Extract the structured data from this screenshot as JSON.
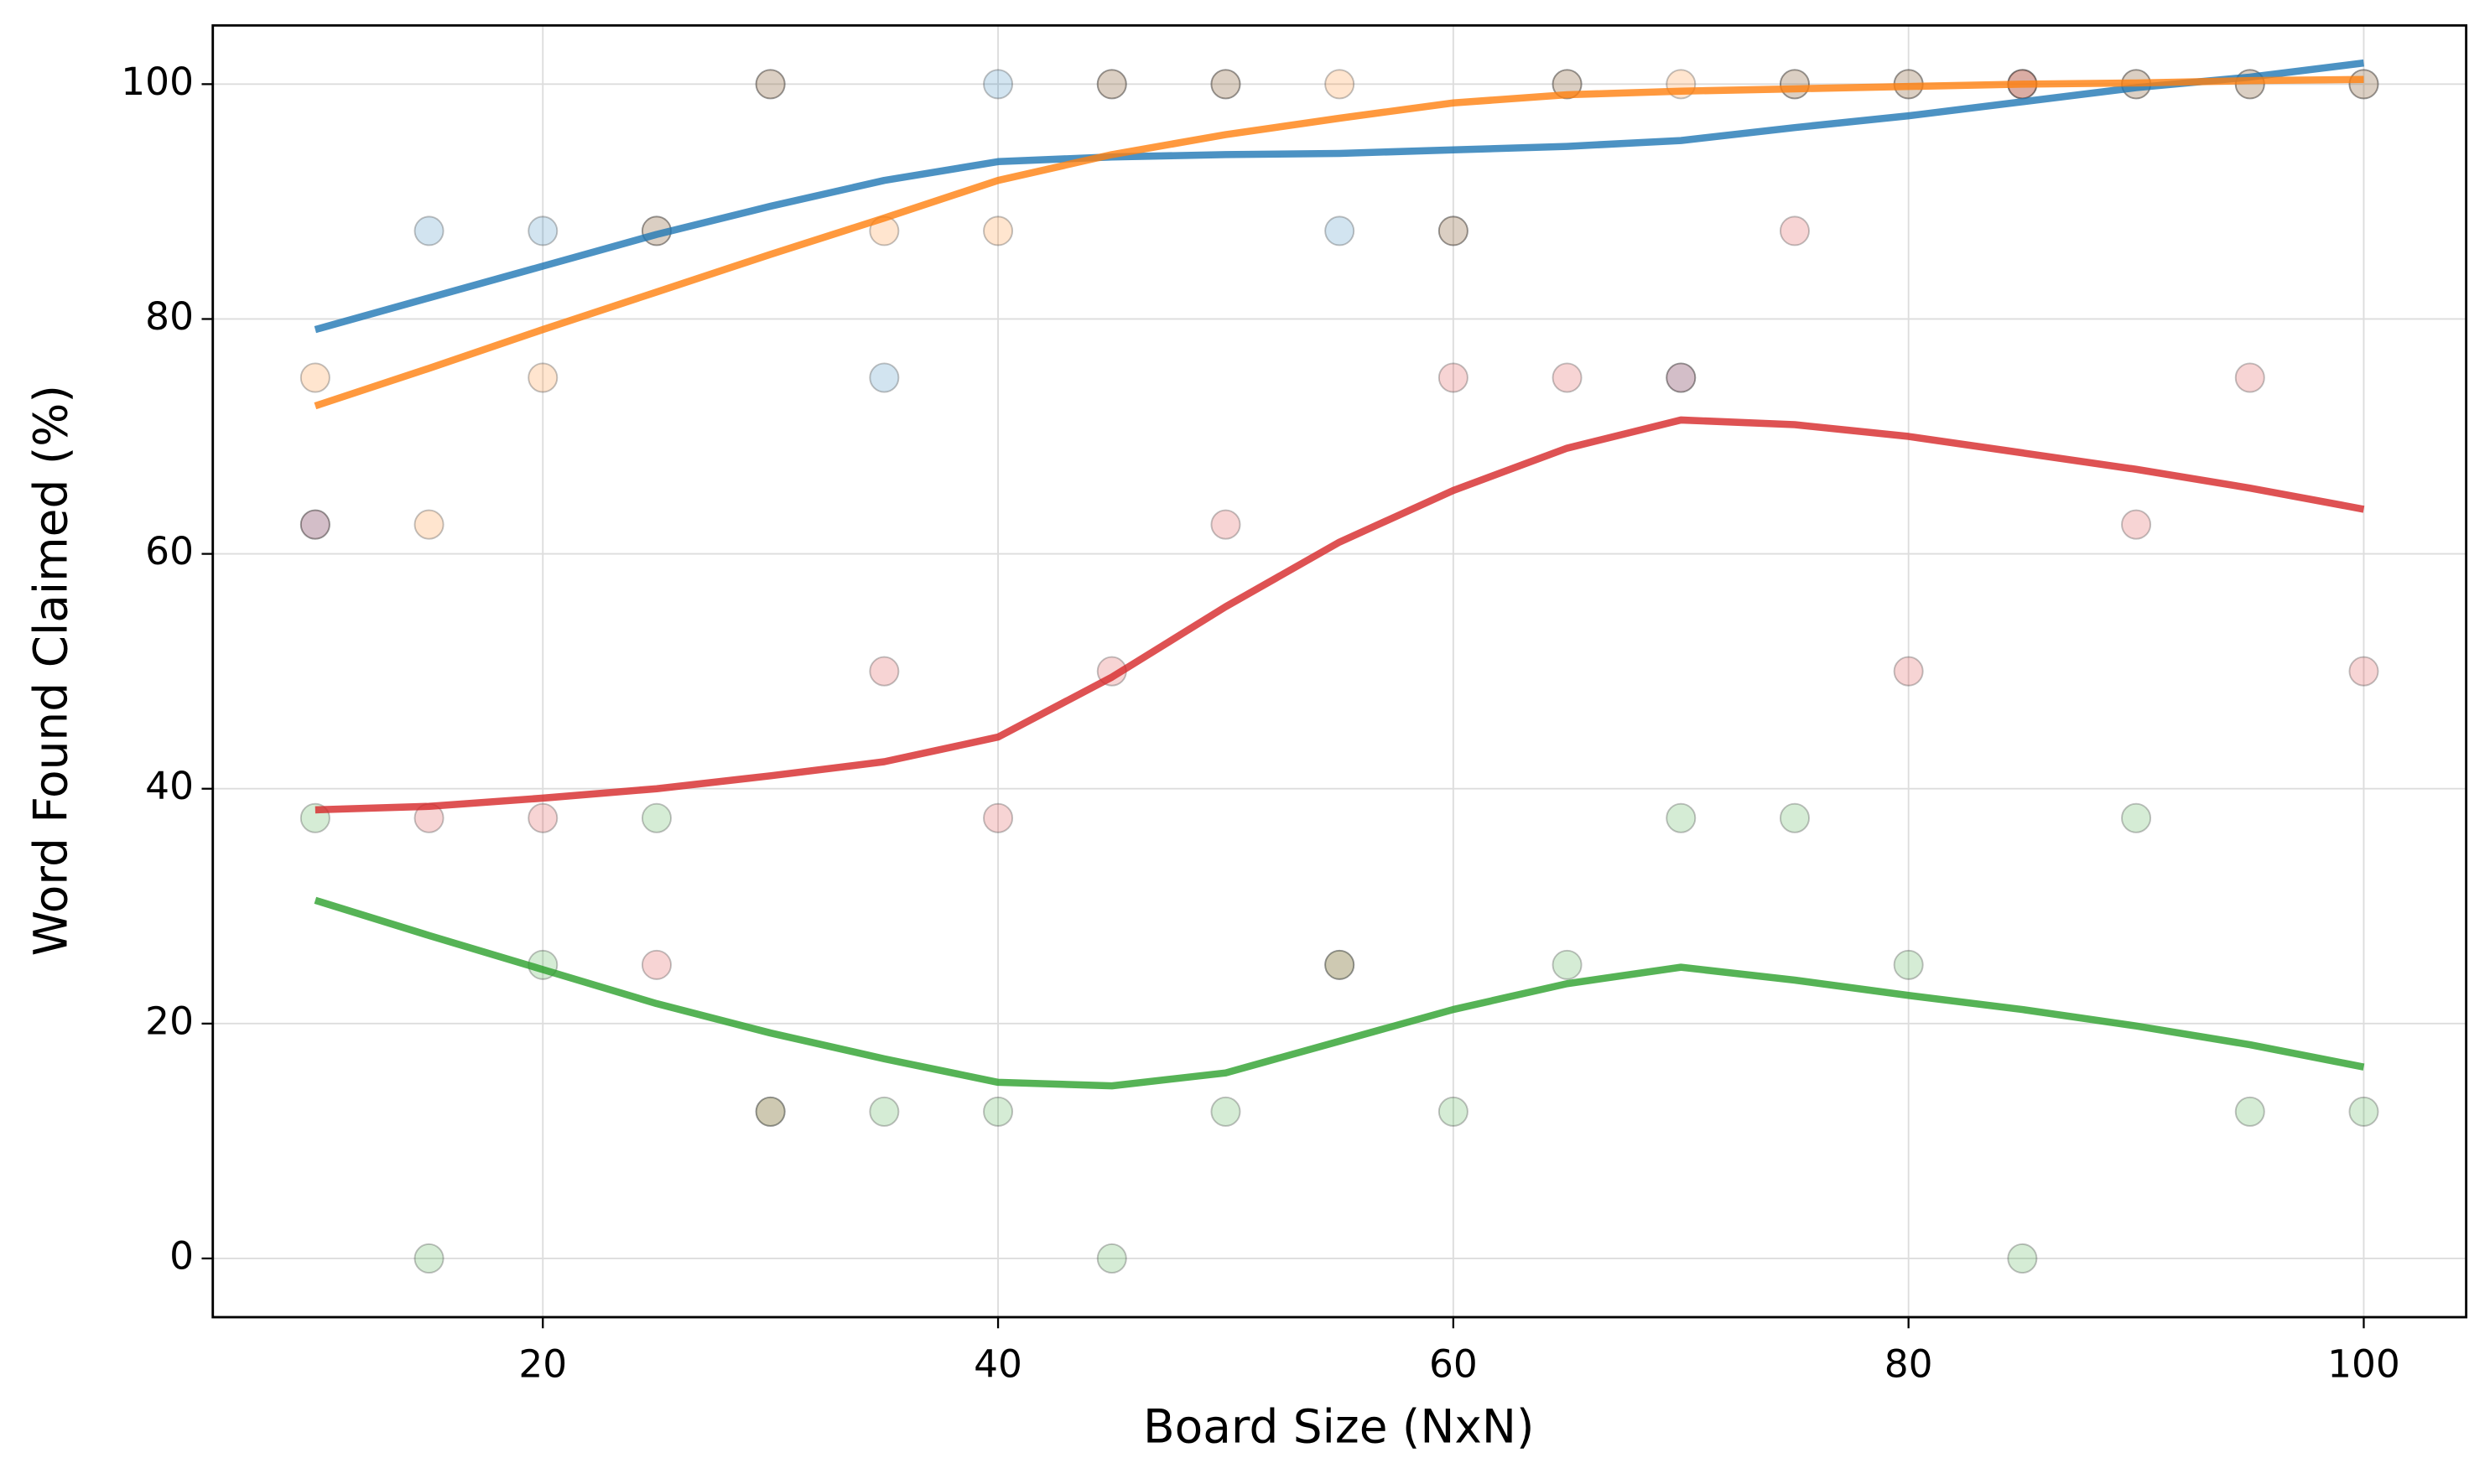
{
  "chart_data": {
    "type": "scatter",
    "xlabel": "Board Size (NxN)",
    "ylabel": "Word Found Claimed (%)",
    "x": [
      10,
      15,
      20,
      25,
      30,
      35,
      40,
      45,
      50,
      55,
      60,
      65,
      70,
      75,
      80,
      85,
      90,
      95,
      100
    ],
    "xlim": [
      5.5,
      104.5
    ],
    "xticks": [
      20,
      40,
      60,
      80,
      100
    ],
    "ylim": [
      -5,
      105
    ],
    "yticks": [
      0,
      20,
      40,
      60,
      80,
      100
    ],
    "grid": true,
    "series": [
      {
        "color": "#1f77b4",
        "values": [
          62.5,
          87.5,
          87.5,
          87.5,
          100,
          75,
          100,
          100,
          100,
          87.5,
          87.5,
          100,
          75,
          100,
          100,
          100,
          100,
          100,
          100
        ],
        "trend": [
          79.1,
          81.8,
          84.5,
          87.2,
          89.6,
          91.8,
          93.4,
          93.8,
          94.0,
          94.1,
          94.4,
          94.7,
          95.2,
          96.3,
          97.3,
          98.5,
          99.7,
          100.6,
          101.8
        ]
      },
      {
        "color": "#ff7f0e",
        "values": [
          75,
          62.5,
          75,
          87.5,
          100,
          87.5,
          87.5,
          100,
          100,
          100,
          87.5,
          100,
          100,
          100,
          100,
          100,
          100,
          100,
          100
        ],
        "trend": [
          72.6,
          75.8,
          79.1,
          82.3,
          85.5,
          88.6,
          91.8,
          94.0,
          95.7,
          97.1,
          98.4,
          99.1,
          99.4,
          99.6,
          99.8,
          100.0,
          100.1,
          100.3,
          100.4
        ]
      },
      {
        "color": "#d62728",
        "values": [
          62.5,
          37.5,
          37.5,
          25,
          12.5,
          50,
          37.5,
          50,
          62.5,
          25,
          75,
          75,
          75,
          87.5,
          50,
          100,
          62.5,
          75,
          50
        ],
        "trend": [
          38.2,
          38.5,
          39.2,
          40.0,
          41.1,
          42.3,
          44.4,
          49.5,
          55.5,
          61.0,
          65.4,
          69.0,
          71.4,
          71.0,
          70.0,
          68.6,
          67.2,
          65.6,
          63.8
        ]
      },
      {
        "color": "#2ca02c",
        "values": [
          37.5,
          0,
          25,
          37.5,
          12.5,
          12.5,
          12.5,
          0,
          12.5,
          25,
          12.5,
          25,
          37.5,
          37.5,
          25,
          0,
          37.5,
          12.5,
          12.5
        ],
        "trend": [
          30.5,
          27.5,
          24.6,
          21.7,
          19.2,
          17.0,
          15.0,
          14.7,
          15.8,
          18.5,
          21.2,
          23.4,
          24.8,
          23.7,
          22.4,
          21.2,
          19.8,
          18.2,
          16.3
        ]
      }
    ]
  }
}
